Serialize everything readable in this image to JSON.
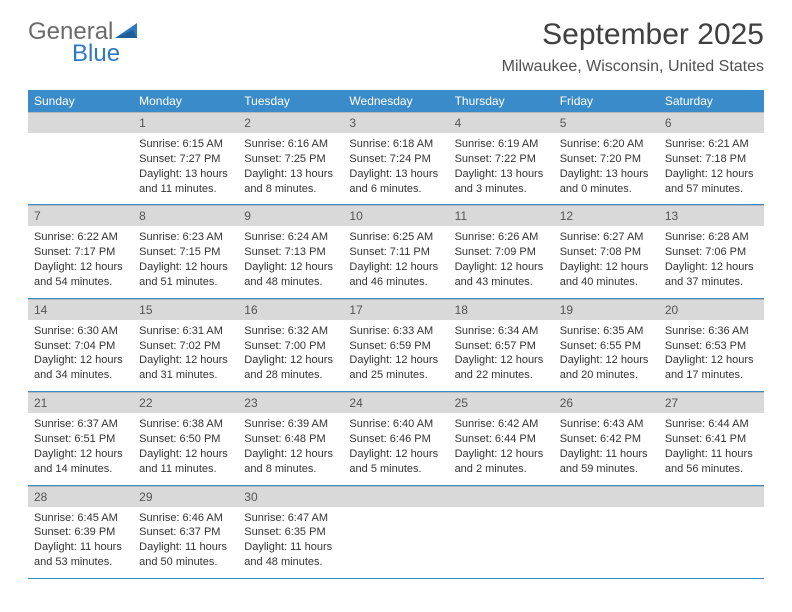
{
  "logo": {
    "text1": "General",
    "text2": "Blue",
    "icon_color": "#2f7abf"
  },
  "title": "September 2025",
  "location": "Milwaukee, Wisconsin, United States",
  "colors": {
    "header_bar": "#3a8bc9",
    "date_bar": "#d9d9d9",
    "border": "#3a8bc9"
  },
  "day_names": [
    "Sunday",
    "Monday",
    "Tuesday",
    "Wednesday",
    "Thursday",
    "Friday",
    "Saturday"
  ],
  "weeks": [
    [
      {
        "date": "",
        "sunrise": "",
        "sunset": "",
        "daylight": ""
      },
      {
        "date": "1",
        "sunrise": "Sunrise: 6:15 AM",
        "sunset": "Sunset: 7:27 PM",
        "daylight": "Daylight: 13 hours and 11 minutes."
      },
      {
        "date": "2",
        "sunrise": "Sunrise: 6:16 AM",
        "sunset": "Sunset: 7:25 PM",
        "daylight": "Daylight: 13 hours and 8 minutes."
      },
      {
        "date": "3",
        "sunrise": "Sunrise: 6:18 AM",
        "sunset": "Sunset: 7:24 PM",
        "daylight": "Daylight: 13 hours and 6 minutes."
      },
      {
        "date": "4",
        "sunrise": "Sunrise: 6:19 AM",
        "sunset": "Sunset: 7:22 PM",
        "daylight": "Daylight: 13 hours and 3 minutes."
      },
      {
        "date": "5",
        "sunrise": "Sunrise: 6:20 AM",
        "sunset": "Sunset: 7:20 PM",
        "daylight": "Daylight: 13 hours and 0 minutes."
      },
      {
        "date": "6",
        "sunrise": "Sunrise: 6:21 AM",
        "sunset": "Sunset: 7:18 PM",
        "daylight": "Daylight: 12 hours and 57 minutes."
      }
    ],
    [
      {
        "date": "7",
        "sunrise": "Sunrise: 6:22 AM",
        "sunset": "Sunset: 7:17 PM",
        "daylight": "Daylight: 12 hours and 54 minutes."
      },
      {
        "date": "8",
        "sunrise": "Sunrise: 6:23 AM",
        "sunset": "Sunset: 7:15 PM",
        "daylight": "Daylight: 12 hours and 51 minutes."
      },
      {
        "date": "9",
        "sunrise": "Sunrise: 6:24 AM",
        "sunset": "Sunset: 7:13 PM",
        "daylight": "Daylight: 12 hours and 48 minutes."
      },
      {
        "date": "10",
        "sunrise": "Sunrise: 6:25 AM",
        "sunset": "Sunset: 7:11 PM",
        "daylight": "Daylight: 12 hours and 46 minutes."
      },
      {
        "date": "11",
        "sunrise": "Sunrise: 6:26 AM",
        "sunset": "Sunset: 7:09 PM",
        "daylight": "Daylight: 12 hours and 43 minutes."
      },
      {
        "date": "12",
        "sunrise": "Sunrise: 6:27 AM",
        "sunset": "Sunset: 7:08 PM",
        "daylight": "Daylight: 12 hours and 40 minutes."
      },
      {
        "date": "13",
        "sunrise": "Sunrise: 6:28 AM",
        "sunset": "Sunset: 7:06 PM",
        "daylight": "Daylight: 12 hours and 37 minutes."
      }
    ],
    [
      {
        "date": "14",
        "sunrise": "Sunrise: 6:30 AM",
        "sunset": "Sunset: 7:04 PM",
        "daylight": "Daylight: 12 hours and 34 minutes."
      },
      {
        "date": "15",
        "sunrise": "Sunrise: 6:31 AM",
        "sunset": "Sunset: 7:02 PM",
        "daylight": "Daylight: 12 hours and 31 minutes."
      },
      {
        "date": "16",
        "sunrise": "Sunrise: 6:32 AM",
        "sunset": "Sunset: 7:00 PM",
        "daylight": "Daylight: 12 hours and 28 minutes."
      },
      {
        "date": "17",
        "sunrise": "Sunrise: 6:33 AM",
        "sunset": "Sunset: 6:59 PM",
        "daylight": "Daylight: 12 hours and 25 minutes."
      },
      {
        "date": "18",
        "sunrise": "Sunrise: 6:34 AM",
        "sunset": "Sunset: 6:57 PM",
        "daylight": "Daylight: 12 hours and 22 minutes."
      },
      {
        "date": "19",
        "sunrise": "Sunrise: 6:35 AM",
        "sunset": "Sunset: 6:55 PM",
        "daylight": "Daylight: 12 hours and 20 minutes."
      },
      {
        "date": "20",
        "sunrise": "Sunrise: 6:36 AM",
        "sunset": "Sunset: 6:53 PM",
        "daylight": "Daylight: 12 hours and 17 minutes."
      }
    ],
    [
      {
        "date": "21",
        "sunrise": "Sunrise: 6:37 AM",
        "sunset": "Sunset: 6:51 PM",
        "daylight": "Daylight: 12 hours and 14 minutes."
      },
      {
        "date": "22",
        "sunrise": "Sunrise: 6:38 AM",
        "sunset": "Sunset: 6:50 PM",
        "daylight": "Daylight: 12 hours and 11 minutes."
      },
      {
        "date": "23",
        "sunrise": "Sunrise: 6:39 AM",
        "sunset": "Sunset: 6:48 PM",
        "daylight": "Daylight: 12 hours and 8 minutes."
      },
      {
        "date": "24",
        "sunrise": "Sunrise: 6:40 AM",
        "sunset": "Sunset: 6:46 PM",
        "daylight": "Daylight: 12 hours and 5 minutes."
      },
      {
        "date": "25",
        "sunrise": "Sunrise: 6:42 AM",
        "sunset": "Sunset: 6:44 PM",
        "daylight": "Daylight: 12 hours and 2 minutes."
      },
      {
        "date": "26",
        "sunrise": "Sunrise: 6:43 AM",
        "sunset": "Sunset: 6:42 PM",
        "daylight": "Daylight: 11 hours and 59 minutes."
      },
      {
        "date": "27",
        "sunrise": "Sunrise: 6:44 AM",
        "sunset": "Sunset: 6:41 PM",
        "daylight": "Daylight: 11 hours and 56 minutes."
      }
    ],
    [
      {
        "date": "28",
        "sunrise": "Sunrise: 6:45 AM",
        "sunset": "Sunset: 6:39 PM",
        "daylight": "Daylight: 11 hours and 53 minutes."
      },
      {
        "date": "29",
        "sunrise": "Sunrise: 6:46 AM",
        "sunset": "Sunset: 6:37 PM",
        "daylight": "Daylight: 11 hours and 50 minutes."
      },
      {
        "date": "30",
        "sunrise": "Sunrise: 6:47 AM",
        "sunset": "Sunset: 6:35 PM",
        "daylight": "Daylight: 11 hours and 48 minutes."
      },
      {
        "date": "",
        "sunrise": "",
        "sunset": "",
        "daylight": ""
      },
      {
        "date": "",
        "sunrise": "",
        "sunset": "",
        "daylight": ""
      },
      {
        "date": "",
        "sunrise": "",
        "sunset": "",
        "daylight": ""
      },
      {
        "date": "",
        "sunrise": "",
        "sunset": "",
        "daylight": ""
      }
    ]
  ]
}
